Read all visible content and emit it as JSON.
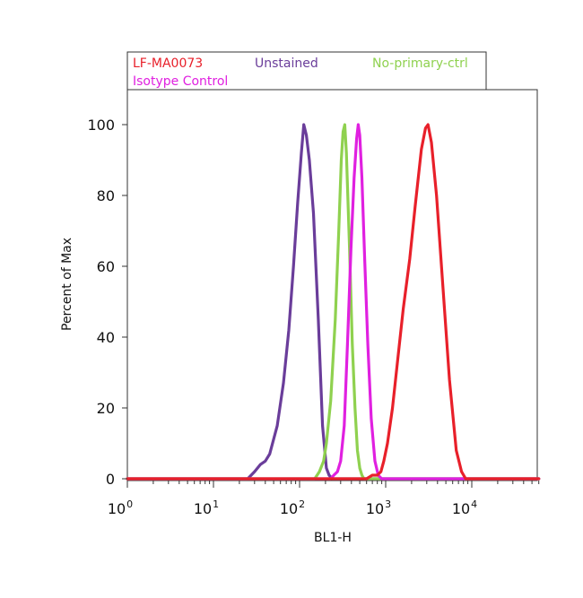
{
  "chart_data": {
    "type": "line",
    "title": "",
    "xlabel": "BL1-H",
    "ylabel": "Percent of Max",
    "xscale": "log",
    "xlim": [
      1,
      60000
    ],
    "ylim": [
      0,
      110
    ],
    "yticks": [
      0,
      20,
      40,
      60,
      80,
      100
    ],
    "xtick_base": "10",
    "xtick_exponents": [
      "0",
      "1",
      "2",
      "3",
      "4"
    ],
    "xtick_values": [
      1,
      10,
      100,
      1000,
      10000
    ],
    "legend": {
      "position": "top",
      "entries": [
        {
          "name": "LF-MA0073",
          "color": "#e8202a"
        },
        {
          "name": "Unstained",
          "color": "#6a3d9a"
        },
        {
          "name": "No-primary-ctrl",
          "color": "#8fd14f"
        },
        {
          "name": "Isotype Control",
          "color": "#e020e0"
        }
      ]
    },
    "series": [
      {
        "name": "Unstained",
        "color": "#6a3d9a",
        "x": [
          1,
          25,
          30,
          35,
          40,
          45,
          55,
          65,
          75,
          85,
          95,
          105,
          112,
          120,
          130,
          145,
          165,
          185,
          205,
          220,
          240,
          60000
        ],
        "values": [
          0,
          0,
          2,
          4,
          5,
          7,
          15,
          27,
          42,
          60,
          78,
          92,
          100,
          97,
          90,
          75,
          45,
          15,
          3,
          1,
          0,
          0
        ]
      },
      {
        "name": "No-primary-ctrl",
        "color": "#8fd14f",
        "x": [
          1,
          150,
          170,
          190,
          205,
          230,
          260,
          285,
          305,
          320,
          335,
          350,
          380,
          410,
          440,
          470,
          500,
          530,
          560,
          60000
        ],
        "values": [
          0,
          0,
          2,
          5,
          10,
          22,
          45,
          70,
          90,
          98,
          100,
          92,
          65,
          38,
          20,
          8,
          3,
          1,
          0,
          0
        ]
      },
      {
        "name": "Isotype Control",
        "color": "#e020e0",
        "x": [
          1,
          230,
          250,
          275,
          300,
          330,
          360,
          395,
          430,
          460,
          480,
          500,
          530,
          570,
          620,
          680,
          750,
          820,
          900,
          60000
        ],
        "values": [
          0,
          0,
          1,
          2,
          5,
          15,
          38,
          65,
          85,
          96,
          100,
          97,
          85,
          62,
          38,
          17,
          5,
          1,
          0,
          0
        ]
      },
      {
        "name": "LF-MA0073",
        "color": "#e8202a",
        "x": [
          1,
          600,
          700,
          800,
          880,
          950,
          1050,
          1200,
          1400,
          1600,
          1900,
          2200,
          2600,
          2900,
          3100,
          3400,
          3900,
          4600,
          5500,
          6600,
          7600,
          8500,
          60000
        ],
        "values": [
          0,
          0,
          1,
          1,
          2,
          5,
          10,
          20,
          35,
          48,
          62,
          77,
          93,
          99,
          100,
          95,
          80,
          55,
          28,
          8,
          2,
          0,
          0
        ]
      }
    ]
  }
}
